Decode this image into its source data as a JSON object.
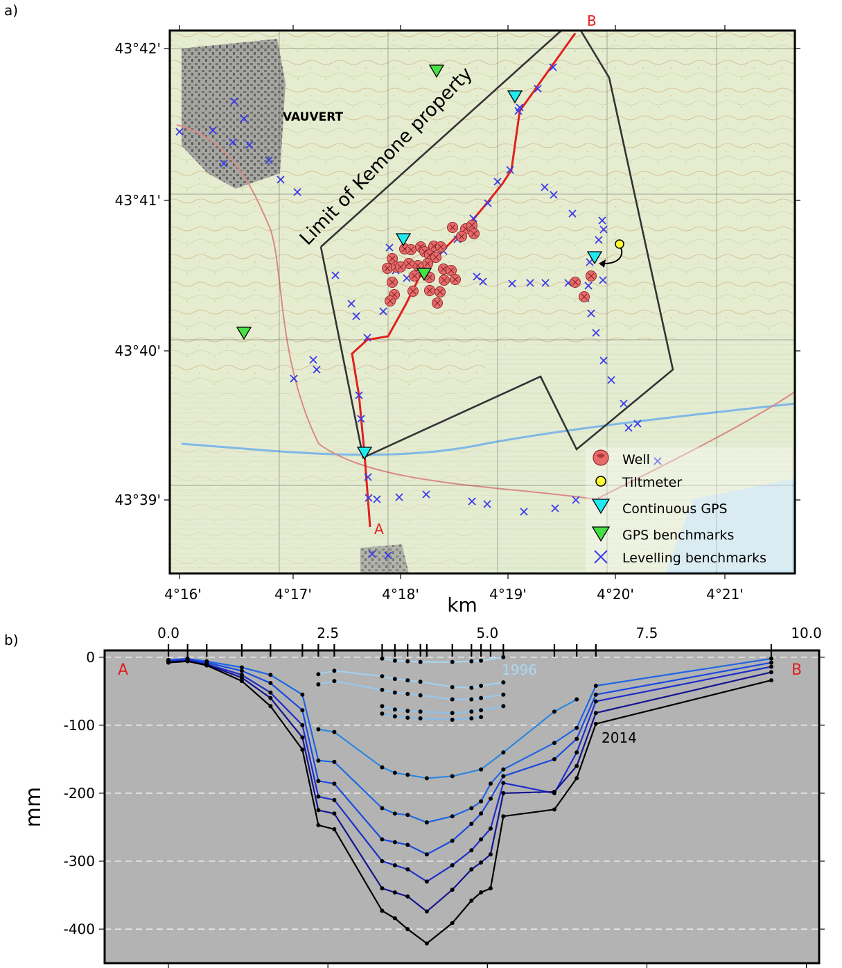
{
  "panel_a_label": "a)",
  "panel_b_label": "b)",
  "map": {
    "town_label": "VAUVERT",
    "property_label": "Limit of Kemone property",
    "point_a": "A",
    "point_b": "B",
    "lat_ticks": [
      "43°42'",
      "43°41'",
      "43°40'",
      "43°39'"
    ],
    "lon_ticks": [
      "4°16'",
      "4°17'",
      "4°18'",
      "4°19'",
      "4°20'",
      "4°21'"
    ],
    "legend": [
      {
        "label": "Well",
        "symbol": "well"
      },
      {
        "label": "Tiltmeter",
        "symbol": "tiltmeter"
      },
      {
        "label": "Continuous GPS",
        "symbol": "cgps"
      },
      {
        "label": "GPS benchmarks",
        "symbol": "gpsbm"
      },
      {
        "label": "Levelling benchmarks",
        "symbol": "level"
      }
    ],
    "colors": {
      "profile_line": "#e02020",
      "well": "#e86a6a",
      "tiltmeter": "#ffff33",
      "cgps": "#22e8f0",
      "gpsbm": "#44e044",
      "level": "#3a3ae8",
      "boundary": "#333333"
    }
  },
  "chart_data": {
    "type": "line",
    "xlabel": "km",
    "ylabel": "mm",
    "xlim": [
      -1.0,
      10.2
    ],
    "ylim": [
      -450,
      10
    ],
    "xticks": [
      "0.0",
      "2.5",
      "5.0",
      "7.5",
      "10.0"
    ],
    "yticks": [
      "0",
      "-100",
      "-200",
      "-300",
      "-400"
    ],
    "end_labels": [
      "A",
      "B"
    ],
    "series_labels": [
      "1996",
      "2014"
    ],
    "benchmark_km": [
      0.0,
      0.3,
      0.6,
      1.15,
      1.6,
      2.1,
      2.35,
      2.6,
      3.35,
      3.55,
      3.75,
      3.95,
      4.05,
      4.45,
      4.75,
      4.9,
      5.05,
      5.25,
      6.05,
      6.4,
      6.7,
      9.45
    ],
    "series": [
      {
        "name": "1996",
        "color": "#aad8f4",
        "x": [
          3.35,
          3.55,
          3.75,
          3.95,
          4.45,
          4.75,
          4.9,
          5.25
        ],
        "y": [
          -2,
          -5,
          -6,
          -7,
          -7,
          -6,
          -5,
          0
        ]
      },
      {
        "color": "#a2d0f0",
        "x": [
          2.35,
          2.6,
          3.35,
          3.55,
          3.75,
          3.95,
          4.45,
          4.75,
          4.9,
          5.25
        ],
        "y": [
          -25,
          -20,
          -28,
          -32,
          -34,
          -36,
          -44,
          -45,
          -42,
          -37
        ]
      },
      {
        "color": "#98c8ee",
        "x": [
          2.35,
          2.6,
          3.35,
          3.55,
          3.75,
          3.95,
          4.45,
          4.75,
          4.9,
          5.25
        ],
        "y": [
          -40,
          -35,
          -48,
          -52,
          -54,
          -56,
          -62,
          -62,
          -60,
          -55
        ]
      },
      {
        "color": "#8ec2ec",
        "x": [
          3.35,
          3.55,
          3.75,
          3.95,
          4.45,
          4.75,
          4.9,
          5.25
        ],
        "y": [
          -72,
          -77,
          -79,
          -80,
          -82,
          -80,
          -78,
          -72
        ]
      },
      {
        "color": "#86bcea",
        "x": [
          3.35,
          3.55,
          3.75,
          3.95,
          4.45,
          4.75,
          4.9
        ],
        "y": [
          -83,
          -87,
          -89,
          -90,
          -92,
          -90,
          -88
        ]
      },
      {
        "color": "#2a88e0",
        "x": [
          2.35,
          2.6,
          3.35,
          3.55,
          3.75,
          4.05,
          4.45,
          4.9,
          5.25,
          6.05,
          6.4
        ],
        "y": [
          -106,
          -110,
          -162,
          -170,
          -173,
          -178,
          -175,
          -165,
          -140,
          -80,
          -62
        ]
      },
      {
        "color": "#1e66e4",
        "x": [
          0.0,
          0.3,
          0.6,
          1.15,
          1.6,
          2.1,
          2.35,
          2.6,
          3.35,
          3.55,
          3.75,
          4.05,
          4.45,
          4.75,
          4.9,
          5.05,
          5.25,
          6.05,
          6.4,
          6.7,
          9.45
        ],
        "y": [
          -4,
          -2,
          -6,
          -15,
          -26,
          -55,
          -152,
          -154,
          -222,
          -230,
          -232,
          -243,
          -234,
          -222,
          -212,
          -186,
          -165,
          -126,
          -104,
          -42,
          -2
        ]
      },
      {
        "color": "#1a4ae0",
        "x": [
          0.0,
          0.3,
          0.6,
          1.15,
          1.6,
          2.1,
          2.35,
          2.6,
          3.35,
          3.55,
          3.75,
          4.05,
          4.45,
          4.75,
          4.9,
          5.05,
          5.25,
          6.05,
          6.4,
          6.7,
          9.45
        ],
        "y": [
          -5,
          -3,
          -8,
          -20,
          -38,
          -78,
          -182,
          -186,
          -268,
          -272,
          -276,
          -290,
          -270,
          -245,
          -230,
          -208,
          -175,
          -150,
          -120,
          -55,
          -8
        ]
      },
      {
        "color": "#1e2ec8",
        "x": [
          0.0,
          0.3,
          0.6,
          1.15,
          1.6,
          2.1,
          2.35,
          2.6,
          3.35,
          3.55,
          3.75,
          4.05,
          4.45,
          4.75,
          4.9,
          5.05,
          5.25,
          6.05,
          6.4,
          6.7,
          9.45
        ],
        "y": [
          -6,
          -4,
          -10,
          -26,
          -52,
          -100,
          -205,
          -210,
          -300,
          -306,
          -312,
          -330,
          -306,
          -284,
          -268,
          -252,
          -185,
          -200,
          -140,
          -65,
          -14
        ]
      },
      {
        "color": "#14148e",
        "x": [
          0.0,
          0.3,
          0.6,
          1.15,
          1.6,
          2.1,
          2.35,
          2.6,
          3.35,
          3.55,
          3.75,
          4.05,
          4.45,
          4.75,
          4.9,
          5.05,
          5.25,
          6.05,
          6.4,
          6.7,
          9.45
        ],
        "y": [
          -7,
          -5,
          -11,
          -30,
          -60,
          -118,
          -225,
          -230,
          -340,
          -346,
          -352,
          -374,
          -342,
          -312,
          -302,
          -290,
          -200,
          -198,
          -160,
          -82,
          -22
        ]
      },
      {
        "name": "2014",
        "color": "#000000",
        "x": [
          0.0,
          0.3,
          0.6,
          1.15,
          1.6,
          2.1,
          2.35,
          2.6,
          3.35,
          3.55,
          3.75,
          4.05,
          4.45,
          4.75,
          4.9,
          5.05,
          5.25,
          6.05,
          6.4,
          6.7,
          9.45
        ],
        "y": [
          -8,
          -6,
          -12,
          -35,
          -72,
          -136,
          -247,
          -253,
          -373,
          -384,
          -400,
          -421,
          -391,
          -358,
          -346,
          -340,
          -234,
          -224,
          -178,
          -98,
          -34
        ]
      }
    ]
  }
}
